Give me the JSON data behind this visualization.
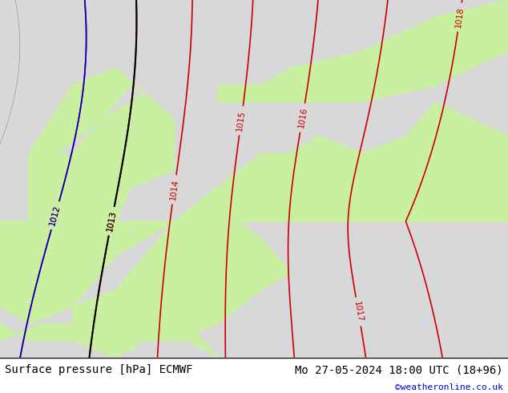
{
  "title_left": "Surface pressure [hPa] ECMWF",
  "title_right": "Mo 27-05-2024 18:00 UTC (18+96)",
  "credit": "©weatheronline.co.uk",
  "title_fontsize": 10,
  "credit_fontsize": 8,
  "bg_color": "#e8e8e8",
  "land_color": "#c8f0a0",
  "sea_color": "#d8d8d8",
  "red_contour_color": "#cc0000",
  "blue_contour_color": "#0000cc",
  "black_contour_color": "#000000",
  "contour_linewidth": 1.2,
  "label_fontsize": 7.5,
  "fig_width": 6.34,
  "fig_height": 4.9,
  "dpi": 100
}
